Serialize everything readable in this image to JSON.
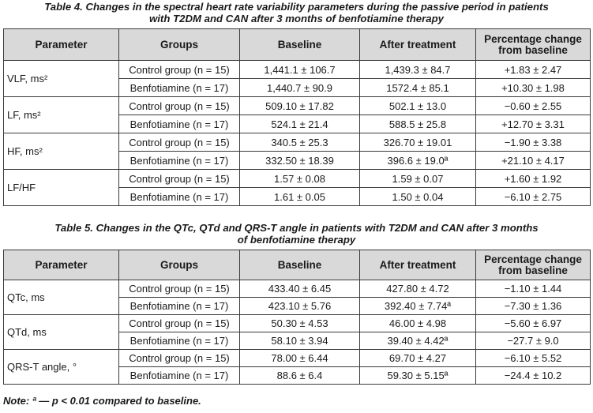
{
  "table4": {
    "caption_line1": "Table 4.  Changes in the spectral heart rate variability parameters during the passive period in patients",
    "caption_line2": "with T2DM and CAN after 3 months of benfotiamine therapy",
    "headers": [
      "Parameter",
      "Groups",
      "Baseline",
      "After treatment",
      "Percentage change from baseline"
    ],
    "rows": [
      {
        "parameter": "VLF, ms²",
        "groups": [
          {
            "group": "Control group (n = 15)",
            "baseline": "1,441.1 ± 106.7",
            "after": "1,439.3 ± 84.7",
            "change": "+1.83 ± 2.47"
          },
          {
            "group": "Benfotiamine (n = 17)",
            "baseline": "1,440.7 ± 90.9",
            "after": "1572.4 ± 85.1",
            "change": "+10.30 ± 1.98"
          }
        ]
      },
      {
        "parameter": "LF, ms²",
        "groups": [
          {
            "group": "Control group (n = 15)",
            "baseline": "509.10 ± 17.82",
            "after": "502.1 ± 13.0",
            "change": "−0.60 ± 2.55"
          },
          {
            "group": "Benfotiamine (n = 17)",
            "baseline": "524.1 ± 21.4",
            "after": "588.5 ± 25.8",
            "change": "+12.70 ± 3.31"
          }
        ]
      },
      {
        "parameter": "HF, ms²",
        "groups": [
          {
            "group": "Control group (n = 15)",
            "baseline": "340.5 ± 25.3",
            "after": "326.70 ± 19.01",
            "change": "−1.90 ± 3.38"
          },
          {
            "group": "Benfotiamine (n = 17)",
            "baseline": "332.50 ± 18.39",
            "after": "396.6 ± 19.0ª",
            "change": "+21.10 ± 4.17"
          }
        ]
      },
      {
        "parameter": "LF/HF",
        "groups": [
          {
            "group": "Control group (n = 15)",
            "baseline": "1.57 ± 0.08",
            "after": "1.59 ± 0.07",
            "change": "+1.60 ± 1.92"
          },
          {
            "group": "Benfotiamine (n = 17)",
            "baseline": "1.61 ± 0.05",
            "after": "1.50 ± 0.04",
            "change": "−6.10 ± 2.75"
          }
        ]
      }
    ]
  },
  "table5": {
    "caption_line1": "Table 5.  Changes in the QTc, QTd and QRS-T angle in patients with T2DM and CAN after 3 months",
    "caption_line2": "of benfotiamine therapy",
    "headers": [
      "Parameter",
      "Groups",
      "Baseline",
      "After treatment",
      "Percentage change from baseline"
    ],
    "rows": [
      {
        "parameter": "QTc, ms",
        "groups": [
          {
            "group": "Control group (n = 15)",
            "baseline": "433.40 ± 6.45",
            "after": "427.80 ± 4.72",
            "change": "−1.10 ± 1.44"
          },
          {
            "group": "Benfotiamine (n = 17)",
            "baseline": "423.10 ± 5.76",
            "after": "392.40 ± 7.74ª",
            "change": "−7.30 ± 1.36"
          }
        ]
      },
      {
        "parameter": "QTd, ms",
        "groups": [
          {
            "group": "Control group (n = 15)",
            "baseline": "50.30 ± 4.53",
            "after": "46.00 ± 4.98",
            "change": "−5.60 ± 6.97"
          },
          {
            "group": "Benfotiamine (n = 17)",
            "baseline": "58.10 ± 3.94",
            "after": "39.40 ± 4.42ª",
            "change": "−27.7 ± 9.0"
          }
        ]
      },
      {
        "parameter": "QRS-T angle, °",
        "groups": [
          {
            "group": "Control group (n = 15)",
            "baseline": "78.00 ± 6.44",
            "after": "69.70 ± 4.27",
            "change": "−6.10 ± 5.52"
          },
          {
            "group": "Benfotiamine (n = 17)",
            "baseline": "88.6 ± 6.4",
            "after": "59.30 ± 5.15ª",
            "change": "−24.4 ± 10.2"
          }
        ]
      }
    ]
  },
  "note": "Note: ª — p < 0.01 compared to baseline."
}
